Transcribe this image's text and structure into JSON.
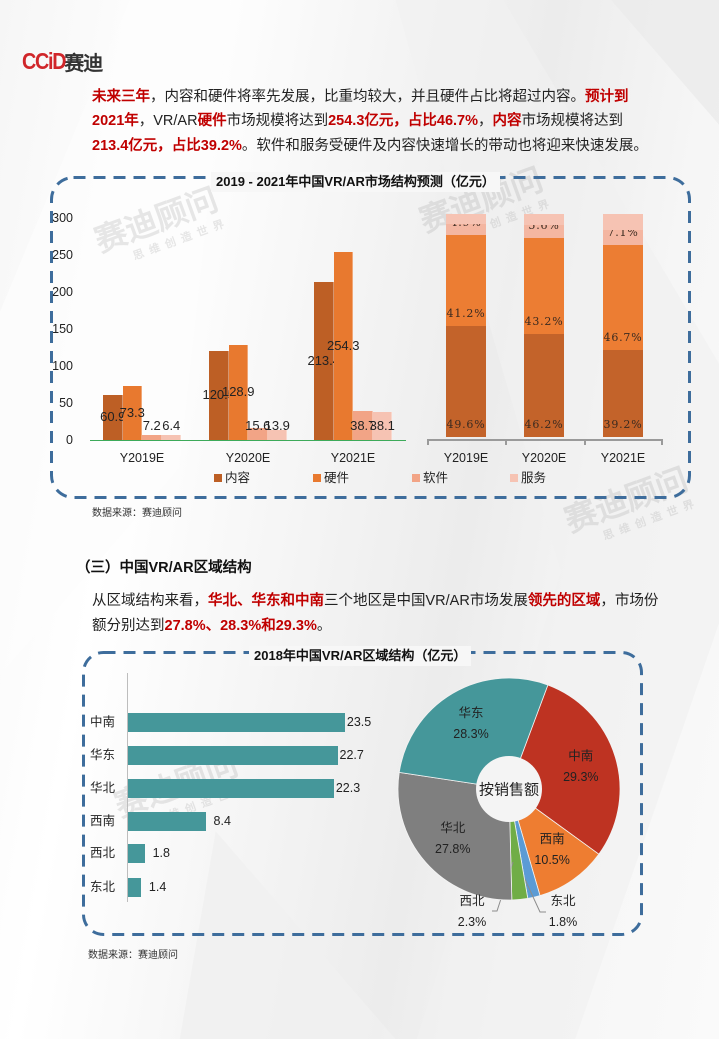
{
  "logo": {
    "brand": "CCiD",
    "cn": "赛迪",
    "brand_color": "#D0262A"
  },
  "intro": {
    "lines": [
      [
        {
          "t": "未来三年",
          "em": true
        },
        {
          "t": "，内容和硬件将率先发展，比重均较大，并且硬件占比将超过内容。"
        },
        {
          "t": "预计到",
          "em": true
        }
      ],
      [
        {
          "t": "2021年",
          "em": true
        },
        {
          "t": "，VR/AR"
        },
        {
          "t": "硬件",
          "em": true
        },
        {
          "t": "市场规模将达到"
        },
        {
          "t": "254.3亿元，占比46.7%",
          "em": true
        },
        {
          "t": "，"
        },
        {
          "t": "内容",
          "em": true
        },
        {
          "t": "市场规模将达到"
        }
      ],
      [
        {
          "t": "213.4亿元，占比39.2%",
          "em": true
        },
        {
          "t": "。软件和服务受硬件及内容快速增长的带动也将迎来快速发展。"
        }
      ]
    ]
  },
  "chart1": {
    "title": "2019 - 2021年中国VR/AR市场结构预测（亿元）",
    "source": "数据来源：赛迪顾问"
  },
  "section3": {
    "heading": "（三）中国VR/AR区域结构",
    "lines": [
      [
        {
          "t": "从区域结构来看，"
        },
        {
          "t": "华北、华东和中南",
          "em": true
        },
        {
          "t": "三个地区是中国VR/AR市场发展"
        },
        {
          "t": "领先的区域",
          "em": true
        },
        {
          "t": "，市场份"
        }
      ],
      [
        {
          "t": "额分别达到"
        },
        {
          "t": "27.8%、28.3%和29.3%",
          "em": true
        },
        {
          "t": "。"
        }
      ]
    ]
  },
  "chart2": {
    "title": "2018年中国VR/AR区域结构（亿元）",
    "source": "数据来源：赛迪顾问",
    "donut_center": "按销售额"
  },
  "watermark": {
    "main": "赛迪顾问",
    "sub": "思维创造世界"
  },
  "colors": {
    "frame": "#3E6D9C",
    "highlight": "#C00000",
    "baseline": "#3DAA5A",
    "content": "#BD5F25",
    "hardware": "#E8792F",
    "software": "#F2A486",
    "service": "#F6C3B3",
    "hbar": "#45979A"
  },
  "chart_data": [
    {
      "type": "bar",
      "title": "2019 - 2021年中国VR/AR市场结构预测（亿元）",
      "categories": [
        "Y2019E",
        "Y2020E",
        "Y2021E"
      ],
      "series": [
        {
          "name": "内容",
          "color": "#BD5F25",
          "values": [
            60.9,
            120.5,
            213.4
          ]
        },
        {
          "name": "硬件",
          "color": "#E8792F",
          "values": [
            73.3,
            128.9,
            254.3
          ]
        },
        {
          "name": "软件",
          "color": "#F2A486",
          "values": [
            7.2,
            15.6,
            38.7
          ]
        },
        {
          "name": "服务",
          "color": "#F6C3B3",
          "values": [
            6.4,
            13.9,
            38.1
          ]
        }
      ],
      "xlabel": "",
      "ylabel": "",
      "ylim": [
        0,
        300
      ],
      "yticks": [
        "0",
        "50",
        "100",
        "150",
        "200",
        "250",
        "300"
      ],
      "grid": false,
      "legend_position": "bottom"
    },
    {
      "type": "bar",
      "stacked": "percent",
      "categories": [
        "Y2019E",
        "Y2020E",
        "Y2021E"
      ],
      "series": [
        {
          "name": "内容",
          "color": "#C3632A",
          "values": [
            49.6,
            46.2,
            39.2
          ],
          "labels": [
            "49.6%",
            "46.2%",
            "39.2%"
          ]
        },
        {
          "name": "硬件",
          "color": "#EC7D33",
          "values": [
            41.2,
            43.2,
            46.7
          ],
          "labels": [
            "41.2%",
            "43.2%",
            "46.7%"
          ]
        },
        {
          "name": "软件",
          "color": "#F4B6A1",
          "values": [
            4.9,
            5.6,
            7.1
          ],
          "labels": [
            "4.9%",
            "5.6%",
            "7.1%"
          ]
        },
        {
          "name": "服务",
          "color": "#F6C3B3",
          "values": [
            4.3,
            5.0,
            7.0
          ],
          "labels": [
            null,
            null,
            null
          ]
        }
      ],
      "ylim": [
        0,
        100
      ],
      "grid": false,
      "legend_position": "bottom"
    },
    {
      "type": "bar",
      "orientation": "horizontal",
      "title": "2018年中国VR/AR区域结构（亿元）",
      "categories": [
        "中南",
        "华东",
        "华北",
        "西南",
        "西北",
        "东北"
      ],
      "values": [
        23.5,
        22.7,
        22.3,
        8.4,
        1.8,
        1.4
      ],
      "color": "#45979A",
      "grid": false
    },
    {
      "type": "pie",
      "donut": true,
      "center_label": "按销售额",
      "start_angle_deg": 20.5,
      "slices": [
        {
          "name": "中南",
          "value": 29.3,
          "label": "29.3%",
          "color": "#BE3322"
        },
        {
          "name": "西南",
          "value": 10.5,
          "label": "10.5%",
          "color": "#EE7D31"
        },
        {
          "name": "东北",
          "value": 1.8,
          "label": "1.8%",
          "color": "#5B9BD5"
        },
        {
          "name": "西北",
          "value": 2.3,
          "label": "2.3%",
          "color": "#70AD47"
        },
        {
          "name": "华北",
          "value": 27.8,
          "label": "27.8%",
          "color": "#7F7F7F"
        },
        {
          "name": "华东",
          "value": 28.3,
          "label": "28.3%",
          "color": "#45979A"
        }
      ]
    }
  ]
}
